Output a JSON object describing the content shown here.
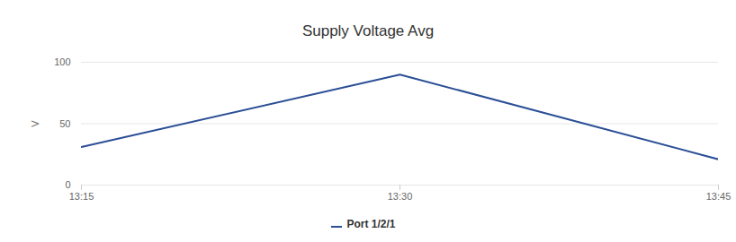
{
  "chart_data": {
    "type": "line",
    "title": "Supply Voltage Avg",
    "y_label": "V",
    "categories": [
      "13:15",
      "13:30",
      "13:45"
    ],
    "series": [
      {
        "name": "Port 1/2/1",
        "color": "#2b4f96",
        "values": [
          31,
          90,
          21
        ]
      }
    ],
    "ylim": [
      0,
      100
    ],
    "yticks": [
      0,
      50,
      100
    ],
    "grid": true,
    "legend": "bottom"
  }
}
